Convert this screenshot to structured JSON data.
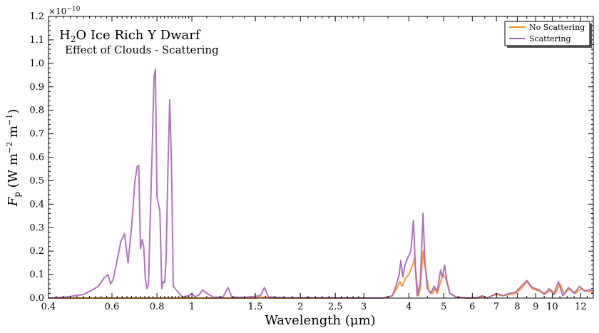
{
  "chart_data": {
    "type": "line",
    "title": "H2O Ice Rich Y Dwarf",
    "title_parts": {
      "pre": "H",
      "sub": "2",
      "post": "O Ice Rich Y Dwarf"
    },
    "subtitle": "Effect of Clouds - Scattering",
    "xlabel": "Wavelength (μm)",
    "ylabel_parts": {
      "f": "F",
      "fsub": "p",
      "open": " (W m",
      "sup1": "−2",
      "mid": " m",
      "sup2": "−1",
      "close": ")"
    },
    "y_exponent": {
      "base": "×10",
      "exp": "−10"
    },
    "x_scale": "log",
    "xlim": [
      0.4,
      13.0
    ],
    "ylim": [
      0.0,
      1.2
    ],
    "x_ticks": [
      0.4,
      0.6,
      0.8,
      1,
      1.5,
      2,
      2.5,
      3,
      4,
      5,
      6,
      7,
      8,
      9,
      10,
      12
    ],
    "x_tick_labels": [
      "0.4",
      "0.6",
      "0.8",
      "1",
      "1.5",
      "2",
      "2.5",
      "3",
      "4",
      "5",
      "6",
      "7",
      "8",
      "9",
      "10",
      "12"
    ],
    "y_ticks": [
      0.0,
      0.1,
      0.2,
      0.3,
      0.4,
      0.5,
      0.6,
      0.7,
      0.8,
      0.9,
      1.0,
      1.1,
      1.2
    ],
    "y_tick_labels": [
      "0.0",
      "0.1",
      "0.2",
      "0.3",
      "0.4",
      "0.5",
      "0.6",
      "0.7",
      "0.8",
      "0.9",
      "1.0",
      "1.1",
      "1.2"
    ],
    "grid": false,
    "legend_position": "top-right",
    "series": [
      {
        "name": "No Scattering",
        "color": "#ff8c1a",
        "points": [
          [
            0.4,
            0.0
          ],
          [
            1.5,
            0.0
          ],
          [
            1.6,
            0.004
          ],
          [
            1.65,
            0.0
          ],
          [
            3.4,
            0.0
          ],
          [
            3.6,
            0.01
          ],
          [
            3.7,
            0.04
          ],
          [
            3.78,
            0.07
          ],
          [
            3.83,
            0.05
          ],
          [
            3.9,
            0.08
          ],
          [
            4.0,
            0.1
          ],
          [
            4.1,
            0.14
          ],
          [
            4.15,
            0.17
          ],
          [
            4.2,
            0.08
          ],
          [
            4.25,
            0.01
          ],
          [
            4.3,
            0.04
          ],
          [
            4.38,
            0.2
          ],
          [
            4.45,
            0.12
          ],
          [
            4.55,
            0.03
          ],
          [
            4.65,
            0.02
          ],
          [
            4.72,
            0.04
          ],
          [
            4.8,
            0.02
          ],
          [
            4.9,
            0.07
          ],
          [
            4.98,
            0.1
          ],
          [
            5.05,
            0.09
          ],
          [
            5.12,
            0.06
          ],
          [
            5.2,
            0.02
          ],
          [
            5.4,
            0.005
          ],
          [
            5.8,
            0.0
          ],
          [
            6.2,
            0.0
          ],
          [
            6.4,
            0.005
          ],
          [
            6.6,
            0.0
          ],
          [
            6.8,
            0.01
          ],
          [
            7.0,
            0.015
          ],
          [
            7.3,
            0.01
          ],
          [
            7.6,
            0.015
          ],
          [
            7.9,
            0.02
          ],
          [
            8.2,
            0.04
          ],
          [
            8.5,
            0.07
          ],
          [
            8.8,
            0.04
          ],
          [
            9.2,
            0.03
          ],
          [
            9.6,
            0.02
          ],
          [
            9.9,
            0.035
          ],
          [
            10.2,
            0.02
          ],
          [
            10.5,
            0.06
          ],
          [
            10.8,
            0.02
          ],
          [
            11.2,
            0.04
          ],
          [
            11.6,
            0.02
          ],
          [
            12.0,
            0.04
          ],
          [
            12.4,
            0.03
          ],
          [
            13.0,
            0.025
          ]
        ]
      },
      {
        "name": "Scattering",
        "color": "#a865b5",
        "points": [
          [
            0.4,
            0.0
          ],
          [
            0.45,
            0.005
          ],
          [
            0.5,
            0.015
          ],
          [
            0.53,
            0.035
          ],
          [
            0.55,
            0.05
          ],
          [
            0.57,
            0.085
          ],
          [
            0.585,
            0.1
          ],
          [
            0.595,
            0.06
          ],
          [
            0.605,
            0.08
          ],
          [
            0.62,
            0.16
          ],
          [
            0.635,
            0.24
          ],
          [
            0.65,
            0.275
          ],
          [
            0.665,
            0.15
          ],
          [
            0.68,
            0.3
          ],
          [
            0.695,
            0.5
          ],
          [
            0.705,
            0.56
          ],
          [
            0.712,
            0.565
          ],
          [
            0.72,
            0.21
          ],
          [
            0.728,
            0.25
          ],
          [
            0.735,
            0.22
          ],
          [
            0.743,
            0.08
          ],
          [
            0.75,
            0.04
          ],
          [
            0.758,
            0.06
          ],
          [
            0.765,
            0.3
          ],
          [
            0.775,
            0.6
          ],
          [
            0.785,
            0.94
          ],
          [
            0.792,
            0.975
          ],
          [
            0.8,
            0.43
          ],
          [
            0.815,
            0.37
          ],
          [
            0.825,
            0.04
          ],
          [
            0.832,
            0.07
          ],
          [
            0.84,
            0.065
          ],
          [
            0.848,
            0.16
          ],
          [
            0.858,
            0.55
          ],
          [
            0.868,
            0.845
          ],
          [
            0.878,
            0.56
          ],
          [
            0.888,
            0.05
          ],
          [
            0.91,
            0.03
          ],
          [
            0.94,
            0.005
          ],
          [
            0.98,
            0.01
          ],
          [
            1.0,
            0.02
          ],
          [
            1.02,
            0.005
          ],
          [
            1.05,
            0.015
          ],
          [
            1.07,
            0.035
          ],
          [
            1.1,
            0.02
          ],
          [
            1.15,
            0.003
          ],
          [
            1.22,
            0.005
          ],
          [
            1.26,
            0.045
          ],
          [
            1.29,
            0.005
          ],
          [
            1.4,
            0.003
          ],
          [
            1.55,
            0.01
          ],
          [
            1.59,
            0.045
          ],
          [
            1.63,
            0.005
          ],
          [
            1.8,
            0.002
          ],
          [
            3.4,
            0.0
          ],
          [
            3.6,
            0.01
          ],
          [
            3.7,
            0.06
          ],
          [
            3.76,
            0.1
          ],
          [
            3.8,
            0.16
          ],
          [
            3.85,
            0.09
          ],
          [
            3.9,
            0.14
          ],
          [
            3.97,
            0.17
          ],
          [
            4.05,
            0.2
          ],
          [
            4.12,
            0.33
          ],
          [
            4.18,
            0.1
          ],
          [
            4.22,
            0.01
          ],
          [
            4.3,
            0.06
          ],
          [
            4.38,
            0.36
          ],
          [
            4.43,
            0.16
          ],
          [
            4.5,
            0.04
          ],
          [
            4.6,
            0.02
          ],
          [
            4.7,
            0.05
          ],
          [
            4.8,
            0.03
          ],
          [
            4.9,
            0.12
          ],
          [
            4.96,
            0.09
          ],
          [
            5.03,
            0.14
          ],
          [
            5.1,
            0.07
          ],
          [
            5.2,
            0.02
          ],
          [
            5.4,
            0.005
          ],
          [
            5.8,
            0.0
          ],
          [
            6.2,
            0.002
          ],
          [
            6.4,
            0.01
          ],
          [
            6.6,
            0.0
          ],
          [
            6.8,
            0.01
          ],
          [
            7.0,
            0.02
          ],
          [
            7.3,
            0.01
          ],
          [
            7.6,
            0.02
          ],
          [
            7.9,
            0.025
          ],
          [
            8.2,
            0.05
          ],
          [
            8.5,
            0.075
          ],
          [
            8.8,
            0.045
          ],
          [
            9.2,
            0.035
          ],
          [
            9.5,
            0.015
          ],
          [
            9.8,
            0.04
          ],
          [
            10.1,
            0.015
          ],
          [
            10.4,
            0.07
          ],
          [
            10.7,
            0.01
          ],
          [
            11.1,
            0.045
          ],
          [
            11.5,
            0.02
          ],
          [
            11.9,
            0.05
          ],
          [
            12.3,
            0.03
          ],
          [
            12.7,
            0.035
          ],
          [
            13.0,
            0.03
          ]
        ]
      }
    ]
  }
}
